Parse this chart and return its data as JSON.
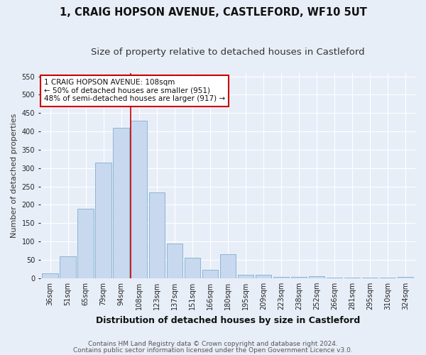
{
  "title": "1, CRAIG HOPSON AVENUE, CASTLEFORD, WF10 5UT",
  "subtitle": "Size of property relative to detached houses in Castleford",
  "xlabel": "Distribution of detached houses by size in Castleford",
  "ylabel": "Number of detached properties",
  "bar_labels": [
    "36sqm",
    "51sqm",
    "65sqm",
    "79sqm",
    "94sqm",
    "108sqm",
    "123sqm",
    "137sqm",
    "151sqm",
    "166sqm",
    "180sqm",
    "195sqm",
    "209sqm",
    "223sqm",
    "238sqm",
    "252sqm",
    "266sqm",
    "281sqm",
    "295sqm",
    "310sqm",
    "324sqm"
  ],
  "bar_values": [
    13,
    60,
    190,
    315,
    410,
    430,
    233,
    94,
    55,
    22,
    65,
    10,
    10,
    4,
    3,
    5,
    2,
    1,
    1,
    1,
    4
  ],
  "bar_color": "#c8d8ee",
  "bar_edge_color": "#7fafd0",
  "highlight_bar_index": 5,
  "red_line_color": "#cc0000",
  "ylim": [
    0,
    560
  ],
  "yticks": [
    0,
    50,
    100,
    150,
    200,
    250,
    300,
    350,
    400,
    450,
    500,
    550
  ],
  "annotation_text": "1 CRAIG HOPSON AVENUE: 108sqm\n← 50% of detached houses are smaller (951)\n48% of semi-detached houses are larger (917) →",
  "footnote1": "Contains HM Land Registry data © Crown copyright and database right 2024.",
  "footnote2": "Contains public sector information licensed under the Open Government Licence v3.0.",
  "bg_color": "#e8eef8",
  "grid_color": "#ffffff",
  "title_fontsize": 10.5,
  "subtitle_fontsize": 9.5,
  "xlabel_fontsize": 9,
  "ylabel_fontsize": 8,
  "tick_fontsize": 7,
  "annotation_fontsize": 7.5,
  "footnote_fontsize": 6.5
}
